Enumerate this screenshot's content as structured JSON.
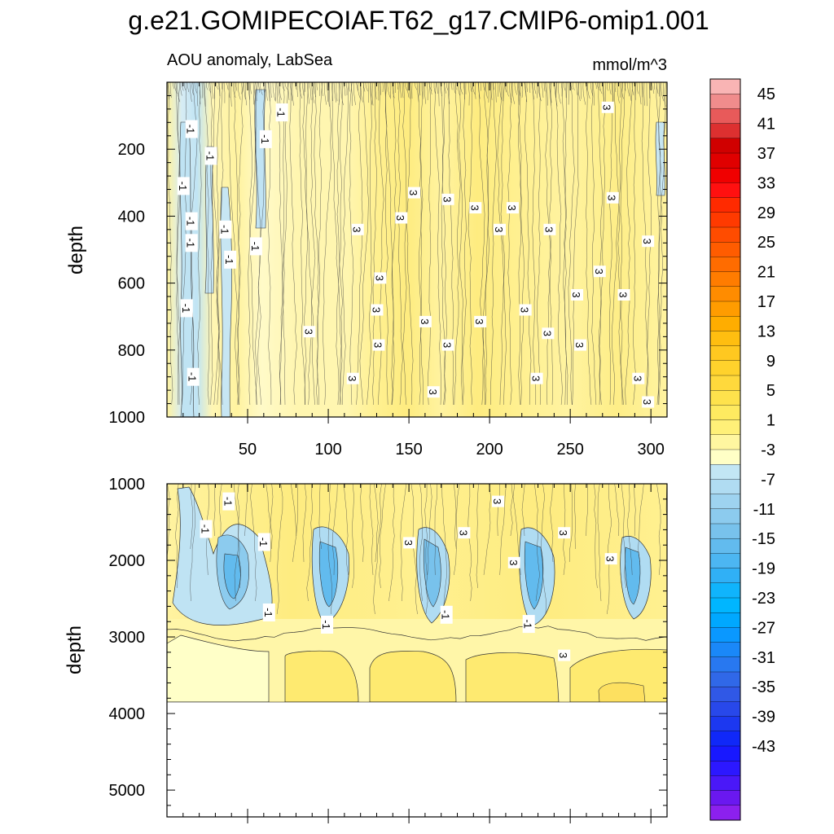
{
  "figure": {
    "title": "g.e21.GOMIPECOIAF.T62_g17.CMIP6-omip1.001",
    "subtitle_left": "AOU anomaly, LabSea",
    "subtitle_right": "mmol/m^3"
  },
  "chart_data": [
    {
      "type": "heatmap",
      "panel": "upper",
      "title": "AOU anomaly, LabSea",
      "units": "mmol/m^3",
      "xlabel": "",
      "ylabel": "depth",
      "xlim": [
        0,
        310
      ],
      "ylim": [
        1000,
        0
      ],
      "xticks": [
        50,
        100,
        150,
        200,
        250,
        300
      ],
      "yticks": [
        200,
        400,
        600,
        800,
        1000
      ],
      "contour_labels": [
        {
          "x": 15,
          "y": 140,
          "text": "-1"
        },
        {
          "x": 27,
          "y": 220,
          "text": "-1"
        },
        {
          "x": 10,
          "y": 310,
          "text": "-1"
        },
        {
          "x": 15,
          "y": 415,
          "text": "-1"
        },
        {
          "x": 15,
          "y": 480,
          "text": "-1"
        },
        {
          "x": 36,
          "y": 440,
          "text": "-1"
        },
        {
          "x": 39,
          "y": 530,
          "text": "-1"
        },
        {
          "x": 55,
          "y": 490,
          "text": "-1"
        },
        {
          "x": 61,
          "y": 170,
          "text": "-1"
        },
        {
          "x": 71,
          "y": 90,
          "text": "-1"
        },
        {
          "x": 12,
          "y": 675,
          "text": "-1"
        },
        {
          "x": 16,
          "y": 880,
          "text": "-1"
        },
        {
          "x": 118,
          "y": 440,
          "text": "3"
        },
        {
          "x": 88,
          "y": 745,
          "text": "3"
        },
        {
          "x": 115,
          "y": 885,
          "text": "3"
        },
        {
          "x": 132,
          "y": 585,
          "text": "3"
        },
        {
          "x": 130,
          "y": 680,
          "text": "3"
        },
        {
          "x": 131,
          "y": 785,
          "text": "3"
        },
        {
          "x": 145,
          "y": 405,
          "text": "3"
        },
        {
          "x": 153,
          "y": 330,
          "text": "3"
        },
        {
          "x": 165,
          "y": 925,
          "text": "3"
        },
        {
          "x": 160,
          "y": 715,
          "text": "3"
        },
        {
          "x": 174,
          "y": 350,
          "text": "3"
        },
        {
          "x": 174,
          "y": 785,
          "text": "3"
        },
        {
          "x": 191,
          "y": 375,
          "text": "3"
        },
        {
          "x": 194,
          "y": 715,
          "text": "3"
        },
        {
          "x": 206,
          "y": 440,
          "text": "3"
        },
        {
          "x": 214,
          "y": 375,
          "text": "3"
        },
        {
          "x": 222,
          "y": 680,
          "text": "3"
        },
        {
          "x": 229,
          "y": 885,
          "text": "3"
        },
        {
          "x": 237,
          "y": 440,
          "text": "3"
        },
        {
          "x": 236,
          "y": 750,
          "text": "3"
        },
        {
          "x": 254,
          "y": 635,
          "text": "3"
        },
        {
          "x": 256,
          "y": 785,
          "text": "3"
        },
        {
          "x": 268,
          "y": 565,
          "text": "3"
        },
        {
          "x": 276,
          "y": 345,
          "text": "3"
        },
        {
          "x": 273,
          "y": 75,
          "text": "3"
        },
        {
          "x": 283,
          "y": 635,
          "text": "3"
        },
        {
          "x": 292,
          "y": 885,
          "text": "3"
        },
        {
          "x": 298,
          "y": 475,
          "text": "3"
        },
        {
          "x": 298,
          "y": 955,
          "text": "3"
        }
      ]
    },
    {
      "type": "heatmap",
      "panel": "lower",
      "title": "",
      "units": "mmol/m^3",
      "xlabel": "",
      "ylabel": "depth",
      "xlim": [
        0,
        310
      ],
      "ylim": [
        5350,
        1000
      ],
      "data_bottom_depth": 3880,
      "yticks": [
        1000,
        2000,
        3000,
        4000,
        5000
      ],
      "contour_labels": [
        {
          "x": 38,
          "y": 1230,
          "text": "-1"
        },
        {
          "x": 24,
          "y": 1590,
          "text": "-1"
        },
        {
          "x": 60,
          "y": 1760,
          "text": "-1"
        },
        {
          "x": 63,
          "y": 2680,
          "text": "-1"
        },
        {
          "x": 99,
          "y": 2840,
          "text": "-1"
        },
        {
          "x": 150,
          "y": 1770,
          "text": "3"
        },
        {
          "x": 173,
          "y": 2710,
          "text": "-1"
        },
        {
          "x": 184,
          "y": 1640,
          "text": "3"
        },
        {
          "x": 205,
          "y": 1230,
          "text": "3"
        },
        {
          "x": 215,
          "y": 2030,
          "text": "3"
        },
        {
          "x": 224,
          "y": 2830,
          "text": "-1"
        },
        {
          "x": 246,
          "y": 1640,
          "text": "3"
        },
        {
          "x": 246,
          "y": 3240,
          "text": "3"
        },
        {
          "x": 275,
          "y": 1980,
          "text": "3"
        }
      ]
    },
    {
      "type": "colorbar",
      "labels": [
        "45",
        "41",
        "37",
        "33",
        "29",
        "25",
        "21",
        "17",
        "13",
        "9",
        "5",
        "1",
        "-3",
        "-7",
        "-11",
        "-15",
        "-19",
        "-23",
        "-27",
        "-31",
        "-35",
        "-39",
        "-43"
      ],
      "colors": [
        "#f9b4b4",
        "#f08c8c",
        "#e85a5a",
        "#dd3030",
        "#d00000",
        "#e00000",
        "#f00000",
        "#ff1010",
        "#ff2a00",
        "#ff3a00",
        "#ff4c00",
        "#ff5c00",
        "#ff6c00",
        "#ff7c00",
        "#ff8c00",
        "#ff9c00",
        "#ffad00",
        "#ffbe10",
        "#ffc820",
        "#ffd22c",
        "#ffd93c",
        "#fee24c",
        "#feea60",
        "#fff078",
        "#fff6a0",
        "#ffffc6",
        "#c2e6f4",
        "#b0dcf2",
        "#9ed3f0",
        "#8ccbee",
        "#78c2ec",
        "#62bbee",
        "#4cb6f2",
        "#30b0f6",
        "#10b4fc",
        "#00b6ff",
        "#00a8ff",
        "#0a98ff",
        "#1a88f8",
        "#2878f0",
        "#3068e8",
        "#3058e6",
        "#2848ea",
        "#1c38f0",
        "#1028f8",
        "#1818ff",
        "#2c18ff",
        "#4a18f8",
        "#6a18f0",
        "#8c20ee"
      ]
    }
  ]
}
